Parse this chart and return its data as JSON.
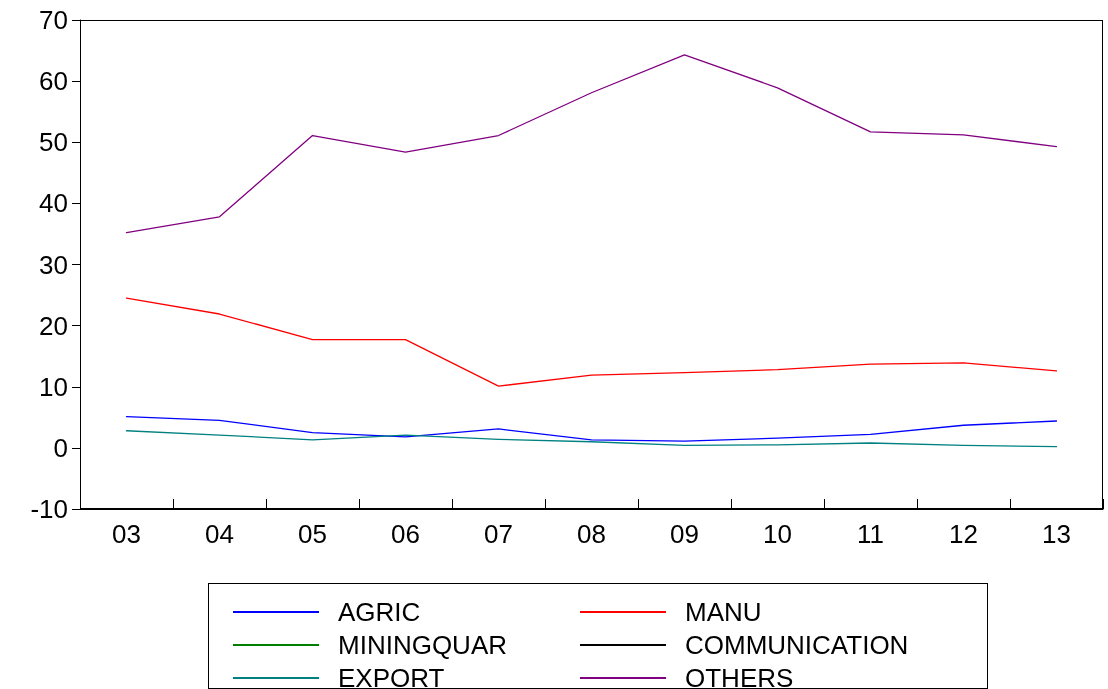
{
  "chart_data": {
    "type": "line",
    "categories": [
      "03",
      "04",
      "05",
      "06",
      "07",
      "08",
      "09",
      "10",
      "11",
      "12",
      "13"
    ],
    "series": [
      {
        "name": "AGRIC",
        "color": "#0000ff",
        "values": [
          5.1,
          4.5,
          2.5,
          1.8,
          3.1,
          1.3,
          1.1,
          1.6,
          2.2,
          3.7,
          4.4
        ]
      },
      {
        "name": "MANU",
        "color": "#ff0000",
        "values": [
          24.5,
          21.9,
          17.7,
          17.7,
          10.1,
          11.9,
          12.3,
          12.8,
          13.7,
          13.9,
          12.6
        ]
      },
      {
        "name": "MININGQUAR",
        "color": "#008000",
        "values": [
          null,
          null,
          null,
          null,
          null,
          null,
          null,
          null,
          null,
          null,
          null
        ]
      },
      {
        "name": "COMMUNICATION",
        "color": "#000000",
        "values": [
          null,
          null,
          null,
          null,
          null,
          null,
          null,
          null,
          null,
          null,
          null
        ]
      },
      {
        "name": "EXPORT",
        "color": "#008080",
        "values": [
          2.8,
          2.1,
          1.3,
          2.1,
          1.4,
          1.0,
          0.4,
          0.5,
          0.8,
          0.4,
          0.2
        ]
      },
      {
        "name": "OTHERS",
        "color": "#800080",
        "values": [
          35.2,
          37.8,
          51.1,
          48.4,
          51.1,
          58.1,
          64.3,
          58.9,
          51.7,
          51.2,
          49.3
        ]
      }
    ],
    "ylim": [
      -10,
      70
    ],
    "yticks": [
      -10,
      0,
      10,
      20,
      30,
      40,
      50,
      60,
      70
    ],
    "grid": false,
    "legend": "bottom",
    "marker": "none",
    "line_style": "solid"
  }
}
